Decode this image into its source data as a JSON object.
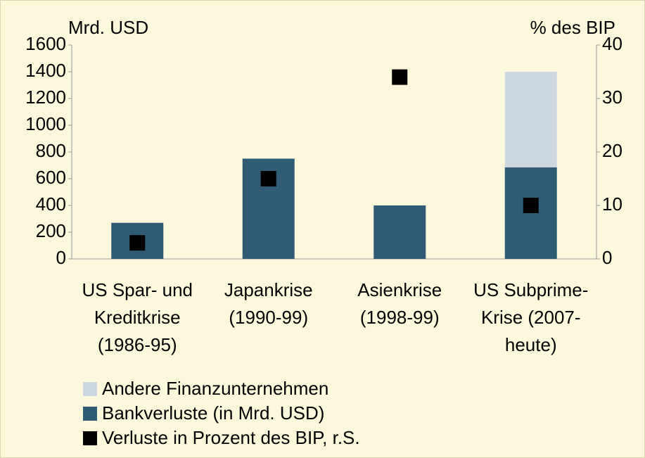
{
  "chart_data": {
    "type": "bar",
    "stacked": true,
    "categories": [
      "US Spar- und Kreditkrise (1986-95)",
      "Japankrise (1990-99)",
      "Asienkrise (1998-99)",
      "US Subprime-Krise (2007-heute)"
    ],
    "series": [
      {
        "name": "Bankverluste (in Mrd. USD)",
        "color": "#2f5b77",
        "values": [
          270,
          750,
          400,
          685
        ]
      },
      {
        "name": "Andere Finanzunternehmen",
        "color": "#cdd8e1",
        "values": [
          0,
          0,
          0,
          715
        ]
      },
      {
        "name": "Verluste in Prozent des BIP, r.S.",
        "color": "#000000",
        "axis": "y2",
        "marker": "square",
        "values": [
          3,
          15,
          34,
          10
        ]
      }
    ],
    "ylabel": "Mrd. USD",
    "y2label": "% des BIP",
    "ylim": [
      0,
      1600
    ],
    "yticks": [
      0,
      200,
      400,
      600,
      800,
      1000,
      1200,
      1400,
      1600
    ],
    "y2lim": [
      0,
      40
    ],
    "y2ticks": [
      0,
      10,
      20,
      30,
      40
    ],
    "grid": false,
    "legend": "bottom-left"
  }
}
